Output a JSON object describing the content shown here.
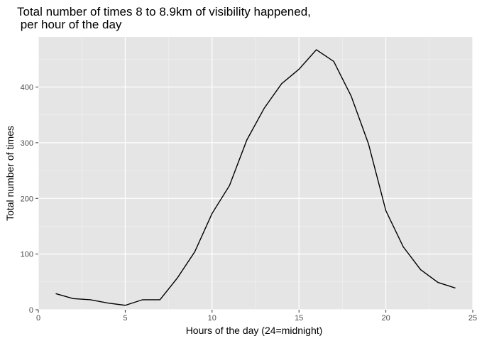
{
  "chart_data": {
    "type": "line",
    "title_line1": "Total number of times 8 to 8.9km of visibility happened,",
    "title_line2": " per hour of the day",
    "xlabel": "Hours of the day (24=midnight)",
    "ylabel": "Total number of times",
    "xlim": [
      0,
      25
    ],
    "ylim": [
      0,
      490
    ],
    "x_ticks": [
      0,
      5,
      10,
      15,
      20,
      25
    ],
    "y_ticks": [
      0,
      100,
      200,
      300,
      400
    ],
    "x_minor": [
      2.5,
      7.5,
      12.5,
      17.5,
      22.5
    ],
    "y_minor": [
      50,
      150,
      250,
      350,
      450
    ],
    "grid": true,
    "panel_color": "#e5e5e5",
    "line_color": "#000000",
    "series": [
      {
        "x": [
          1,
          2,
          3,
          4,
          5,
          6,
          7,
          8,
          9,
          10,
          11,
          12,
          13,
          14,
          15,
          16,
          17,
          18,
          19,
          20,
          21,
          22,
          23,
          24
        ],
        "values": [
          29,
          20,
          18,
          12,
          8,
          18,
          18,
          57,
          104,
          173,
          223,
          305,
          362,
          406,
          432,
          467,
          446,
          384,
          298,
          178,
          113,
          72,
          49,
          39
        ]
      }
    ]
  }
}
